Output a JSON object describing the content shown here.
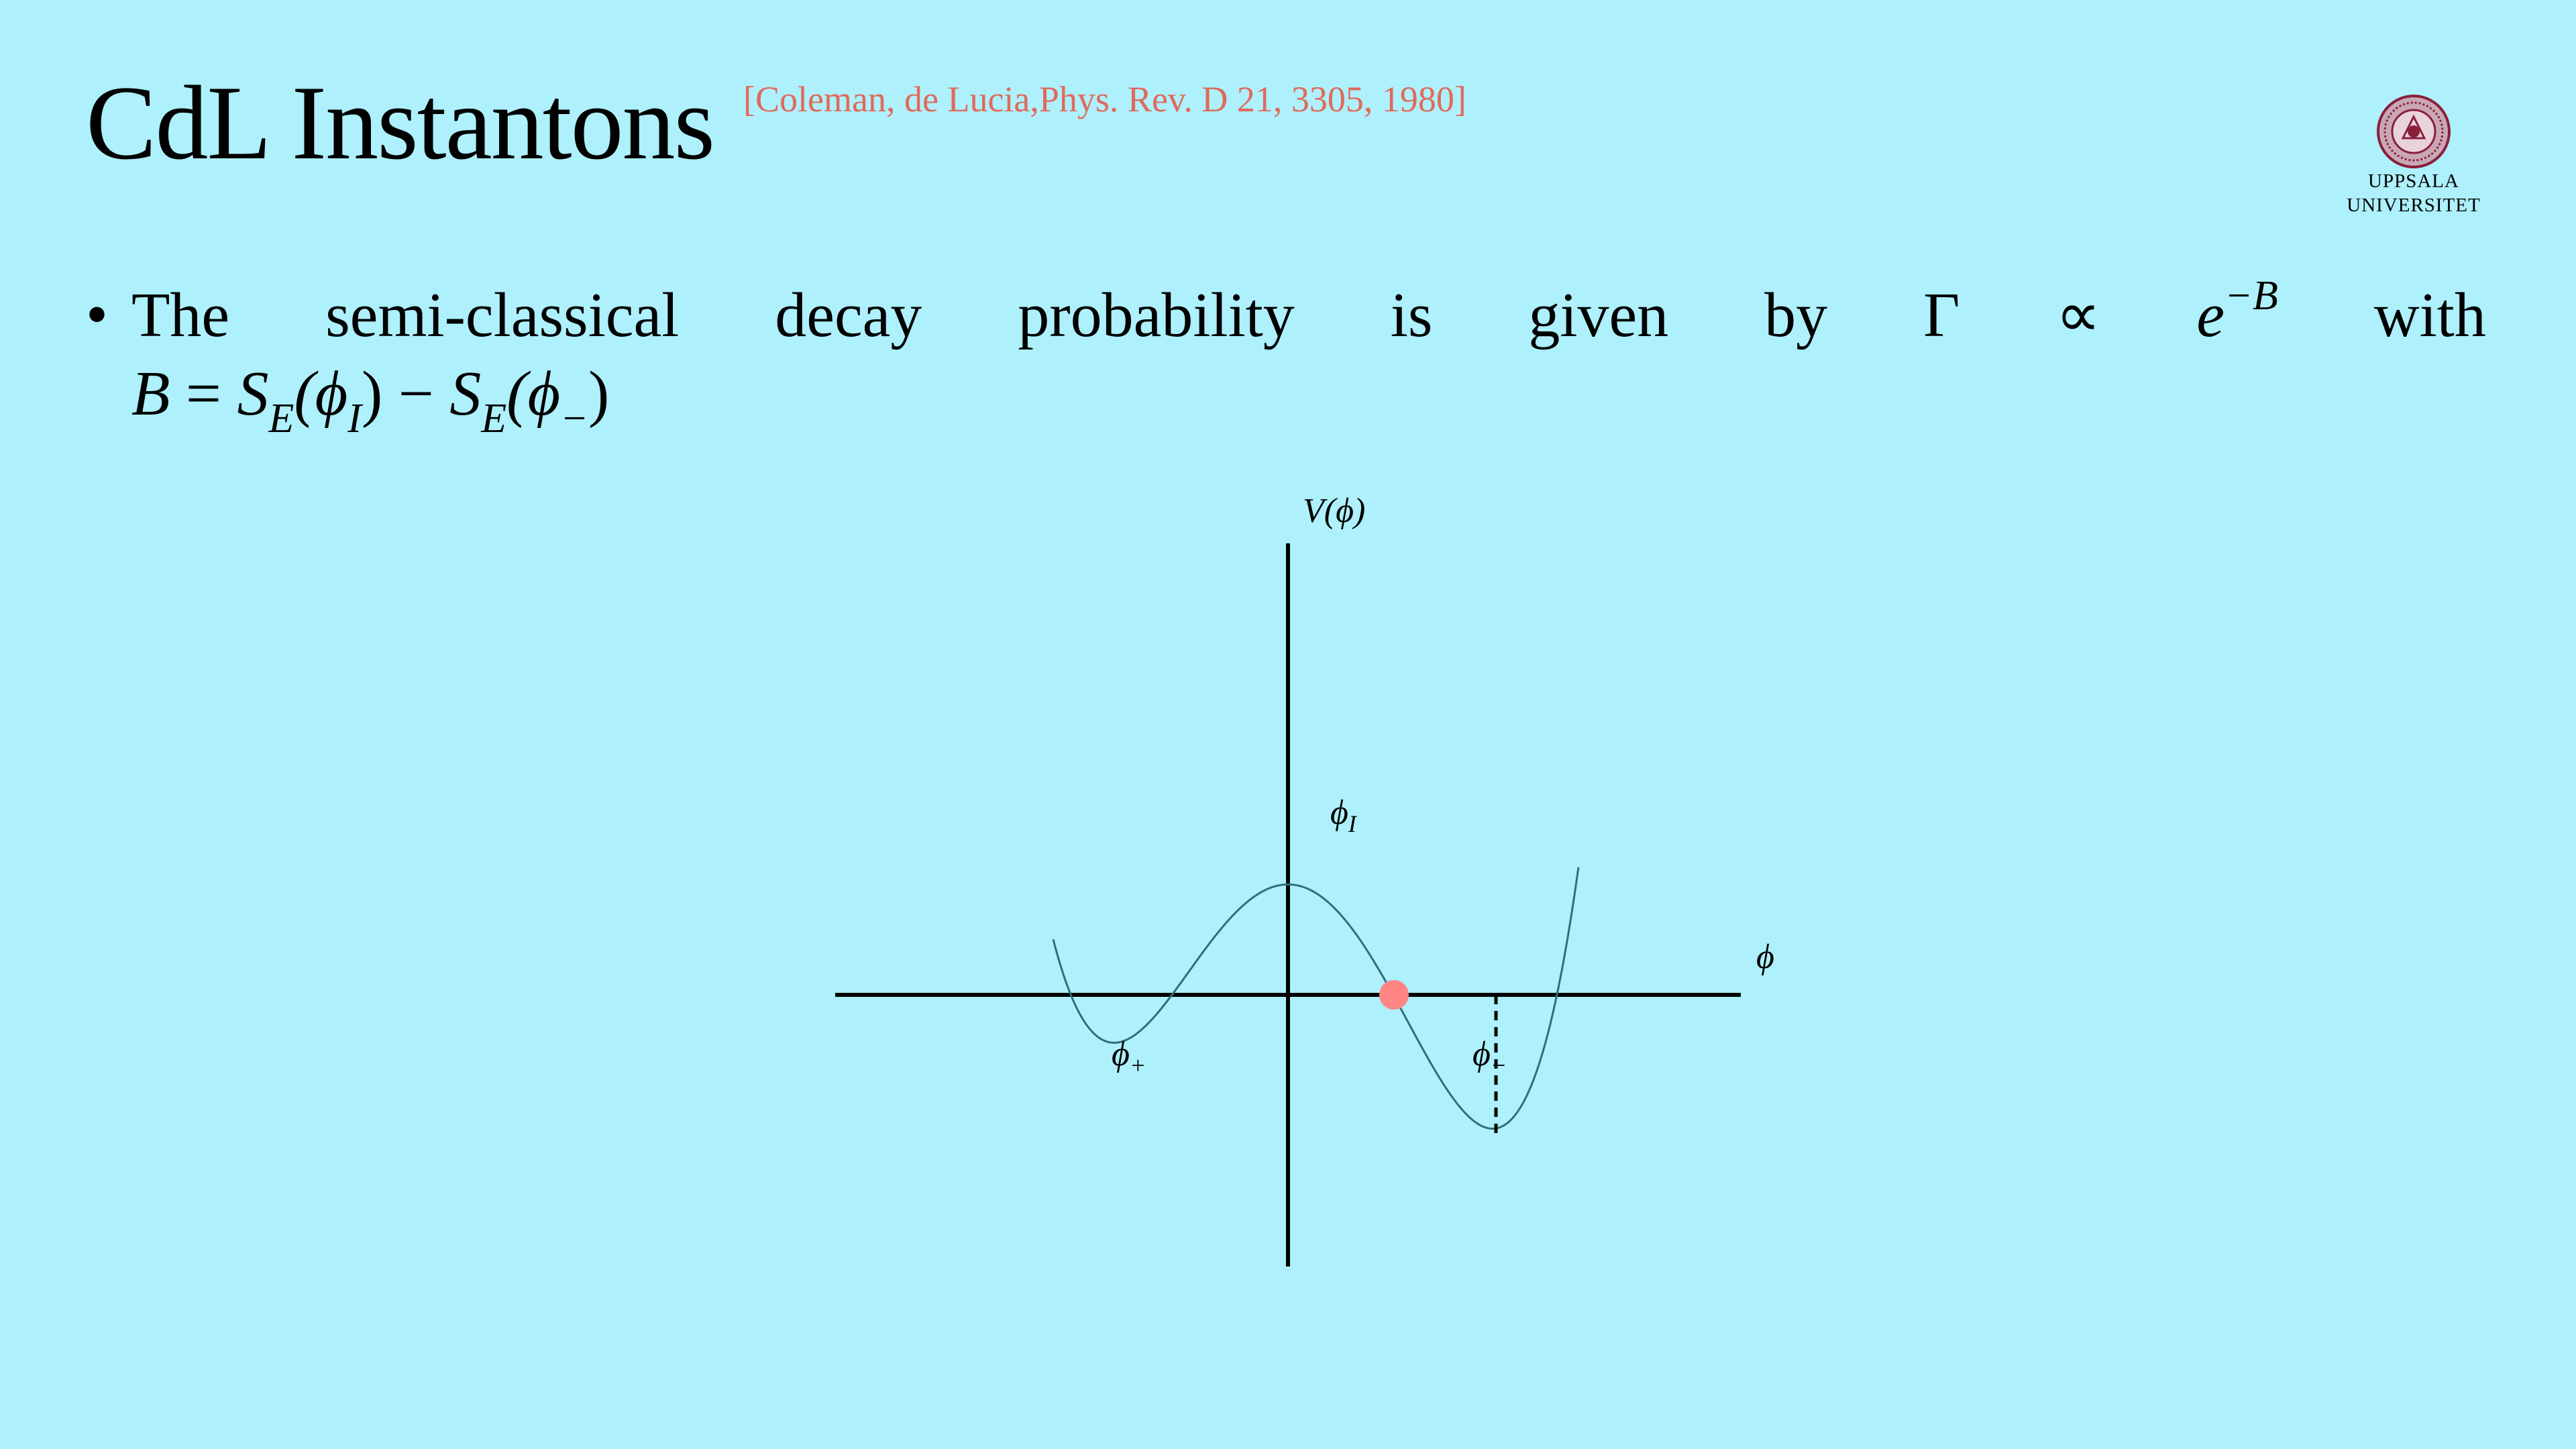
{
  "slide": {
    "title": "CdL Instantons",
    "citation": "[Coleman, de Lucia,Phys. Rev. D 21, 3305, 1980]"
  },
  "logo": {
    "line1": "UPPSALA",
    "line2": "UNIVERSITET"
  },
  "bullet": {
    "words": [
      "The",
      "semi-classical",
      "decay",
      "probability",
      "is",
      "given",
      "by"
    ],
    "gamma": "Γ",
    "proportional": "∝",
    "exp_base": "e",
    "exp_power": "−B",
    "with": "with",
    "formula": {
      "B": "B",
      "equals": " = ",
      "S1": "S",
      "S1_sub": "E",
      "arg1_open": "(ϕ",
      "arg1_sub": "I",
      "arg1_close": ")",
      "minus": " − ",
      "S2": "S",
      "S2_sub": "E",
      "arg2_open": "(ϕ",
      "arg2_sub": "−",
      "arg2_close": ")"
    }
  },
  "plot": {
    "y_axis_label": "V(ϕ)",
    "x_axis_label": "ϕ",
    "phi_I_label": "ϕ",
    "phi_I_sub": "I",
    "phi_plus_label": "ϕ",
    "phi_plus_sub": "+",
    "phi_minus_label": "ϕ",
    "phi_minus_sub": "−",
    "curve_color": "#2f6f78",
    "marker_color": "#ff8585"
  }
}
